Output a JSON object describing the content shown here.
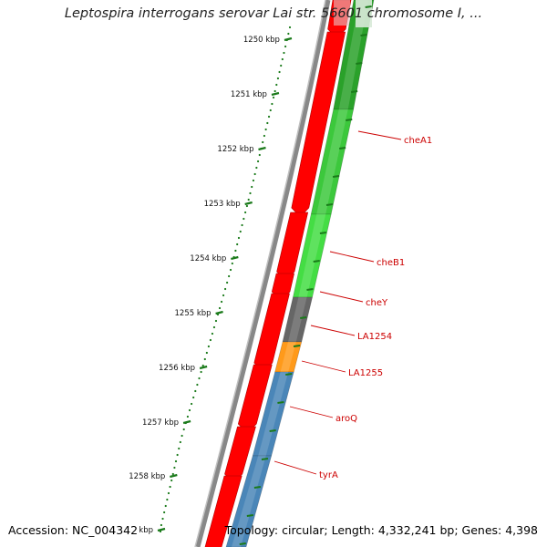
{
  "title": "Leptospira interrogans serovar Lai str. 56601 chromosome I, ...",
  "footer": {
    "accession": "Accession: NC_004342",
    "summary": "Topology: circular; Length: 4,332,241 bp; Genes: 4,398"
  },
  "ticks": [
    {
      "label": "1250 kbp"
    },
    {
      "label": "1251 kbp"
    },
    {
      "label": "1252 kbp"
    },
    {
      "label": "1253 kbp"
    },
    {
      "label": "1254 kbp"
    },
    {
      "label": "1255 kbp"
    },
    {
      "label": "1256 kbp"
    },
    {
      "label": "1257 kbp"
    },
    {
      "label": "1258 kbp"
    },
    {
      "label": "kbp"
    }
  ],
  "genes": [
    {
      "label": "cheA1",
      "color": "#2aa12a"
    },
    {
      "label": "cheB1",
      "color": "#3cc83c"
    },
    {
      "label": "cheY",
      "color": "#44dd44"
    },
    {
      "label": "LA1254",
      "color": "#666666"
    },
    {
      "label": "LA1255",
      "color": "#ff9a1a"
    },
    {
      "label": "aroQ",
      "color": "#4a86b8"
    },
    {
      "label": "tyrA",
      "color": "#4a86b8"
    }
  ],
  "colors": {
    "forward_strand": "#ff0000",
    "backbone": "#888888",
    "tick": "#1a7a1a",
    "label": "#cc0000"
  }
}
